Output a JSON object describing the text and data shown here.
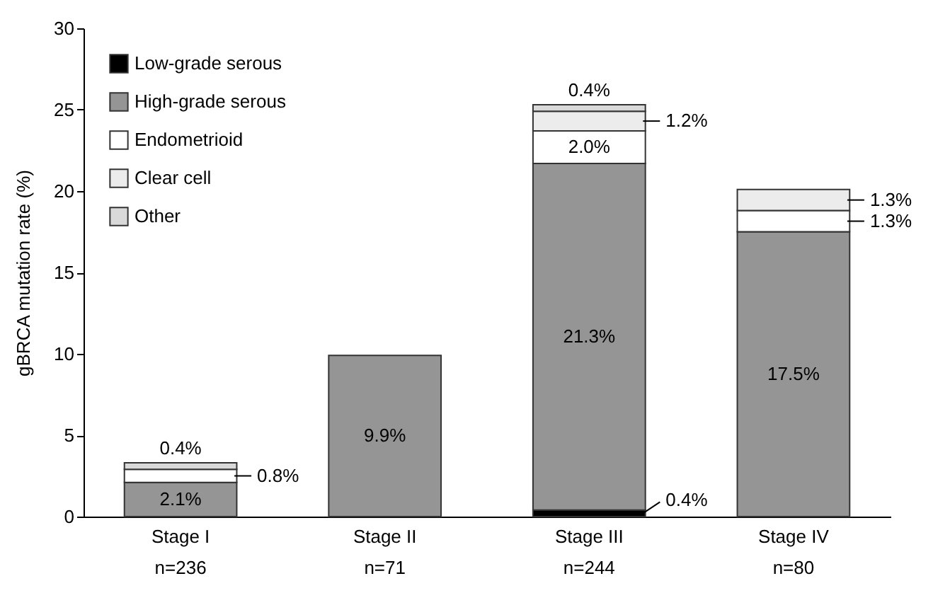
{
  "chart_data": {
    "type": "bar",
    "stacked": true,
    "ylabel": "gBRCA mutation rate (%)",
    "categories": [
      "Stage I\nn=236",
      "Stage II\nn=71",
      "Stage III\nn=244",
      "Stage IV\nn=80"
    ],
    "series": [
      {
        "name": "Low-grade serous",
        "color": "#000000",
        "values": [
          null,
          null,
          0.4,
          null
        ],
        "value_labels": [
          null,
          null,
          "0.4%",
          null
        ]
      },
      {
        "name": "High-grade serous",
        "color": "#959595",
        "values": [
          2.1,
          9.9,
          21.3,
          17.5
        ],
        "value_labels": [
          "2.1%",
          "9.9%",
          "21.3%",
          "17.5%"
        ]
      },
      {
        "name": "Endometrioid",
        "color": "#ffffff",
        "values": [
          0.8,
          null,
          2.0,
          1.3
        ],
        "value_labels": [
          "0.8%",
          null,
          "2.0%",
          "1.3%"
        ]
      },
      {
        "name": "Clear cell",
        "color": "#ececec",
        "values": [
          null,
          null,
          1.2,
          1.3
        ],
        "value_labels": [
          null,
          null,
          "1.2%",
          "1.3%"
        ]
      },
      {
        "name": "Other",
        "color": "#d9d9d9",
        "values": [
          0.4,
          null,
          0.4,
          null
        ],
        "value_labels": [
          "0.4%",
          null,
          "0.4%",
          null
        ]
      }
    ],
    "ylim": [
      0,
      30
    ],
    "yticks": [
      0,
      5,
      10,
      15,
      20,
      25,
      30
    ],
    "legend": "top left"
  }
}
